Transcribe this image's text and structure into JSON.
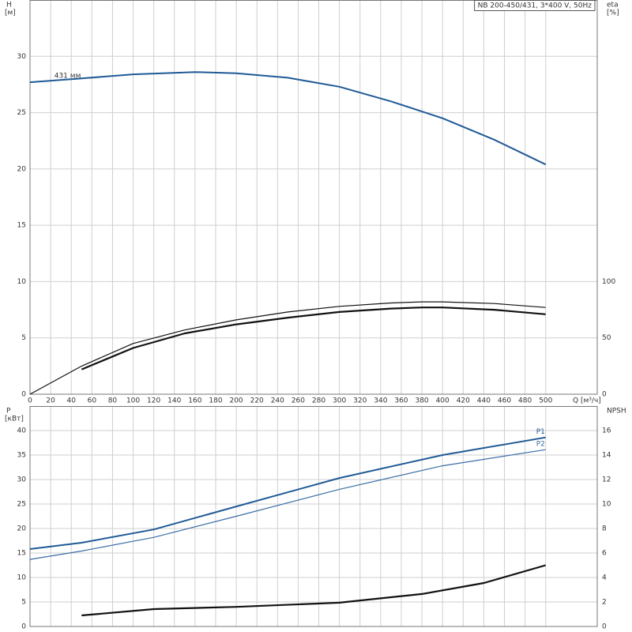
{
  "chart_data": [
    {
      "type": "line",
      "title": "NB 200-450/431, 3*400 V, 50Hz",
      "ylabel": "H",
      "yunit": "[м]",
      "y2label": "eta",
      "y2unit": "[%]",
      "xlabel": "Q [м³/ч]",
      "annotation": "431 мм",
      "xlim": [
        0,
        550
      ],
      "xticks": [
        0,
        20,
        40,
        60,
        80,
        100,
        120,
        140,
        160,
        180,
        200,
        220,
        240,
        260,
        280,
        300,
        320,
        340,
        360,
        380,
        400,
        420,
        440,
        460,
        480,
        500
      ],
      "xtick_labels": true,
      "ylim": [
        0,
        35
      ],
      "yticks": [
        0,
        5,
        10,
        15,
        20,
        25,
        30
      ],
      "y2lim": [
        0,
        350
      ],
      "y2ticks": [
        0,
        50,
        100
      ],
      "grid": true,
      "series": [
        {
          "color": "#1f5a96",
          "line_width": 2,
          "axis": "y",
          "x": [
            0,
            45,
            100,
            160,
            200,
            250,
            300,
            350,
            400,
            450,
            500
          ],
          "values": [
            27.7,
            28.0,
            28.4,
            28.6,
            28.5,
            28.1,
            27.3,
            26.0,
            24.5,
            22.6,
            20.4
          ]
        },
        {
          "color": "#111111",
          "line_width": 1.2,
          "axis": "y2",
          "x": [
            0,
            50,
            100,
            150,
            200,
            250,
            300,
            350,
            380,
            400,
            450,
            500
          ],
          "values": [
            0,
            25,
            45,
            57,
            66,
            73,
            78,
            81,
            82,
            82,
            80.5,
            77
          ]
        },
        {
          "color": "#111111",
          "line_width": 2.2,
          "axis": "y2",
          "x": [
            50,
            100,
            150,
            200,
            250,
            300,
            350,
            380,
            400,
            450,
            500
          ],
          "values": [
            22,
            41,
            54,
            62,
            68,
            73,
            76,
            77,
            77,
            75,
            71
          ]
        }
      ]
    },
    {
      "type": "line",
      "ylabel": "P",
      "yunit": "[кВт]",
      "y2label": "NPSH",
      "xlim": [
        0,
        550
      ],
      "xticks": [
        0,
        20,
        40,
        60,
        80,
        100,
        120,
        140,
        160,
        180,
        200,
        220,
        240,
        260,
        280,
        300,
        320,
        340,
        360,
        380,
        400,
        420,
        440,
        460,
        480,
        500
      ],
      "xtick_labels": false,
      "ylim": [
        0,
        45
      ],
      "yticks": [
        0,
        5,
        10,
        15,
        20,
        25,
        30,
        35,
        40
      ],
      "y2lim": [
        0,
        18
      ],
      "y2ticks": [
        0,
        2,
        4,
        6,
        8,
        10,
        12,
        14,
        16
      ],
      "grid": true,
      "series": [
        {
          "name": "P1",
          "color": "#1f5a96",
          "line_width": 2,
          "axis": "y",
          "x": [
            0,
            50,
            120,
            200,
            300,
            400,
            500
          ],
          "values": [
            15.8,
            17.1,
            19.8,
            24.5,
            30.3,
            35.0,
            38.6
          ]
        },
        {
          "name": "P2",
          "color": "#3a6ea5",
          "line_width": 1.2,
          "axis": "y",
          "x": [
            0,
            50,
            120,
            200,
            300,
            400,
            500
          ],
          "values": [
            13.7,
            15.4,
            18.2,
            22.5,
            28.0,
            32.8,
            36.1
          ]
        },
        {
          "color": "#111111",
          "line_width": 2.2,
          "axis": "y2",
          "x": [
            50,
            120,
            200,
            300,
            380,
            440,
            500
          ],
          "values": [
            0.9,
            1.42,
            1.6,
            1.94,
            2.65,
            3.55,
            5.0
          ]
        }
      ]
    }
  ]
}
